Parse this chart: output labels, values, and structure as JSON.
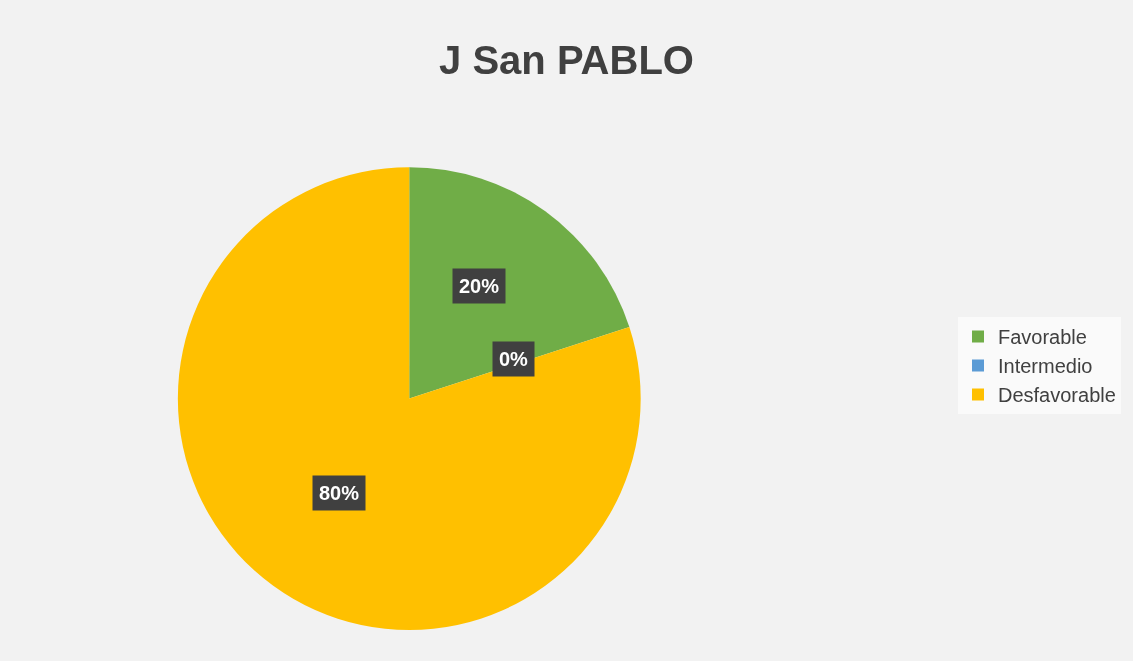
{
  "chart_data": {
    "type": "pie",
    "title": "J San PABLO",
    "categories": [
      "Favorable",
      "Intermedio",
      "Desfavorable"
    ],
    "values": [
      20,
      0,
      80
    ],
    "colors": [
      "#70ad47",
      "#5b9bd5",
      "#ffc000"
    ],
    "value_labels": [
      "20%",
      "0%",
      "80%"
    ],
    "legend": "right"
  }
}
